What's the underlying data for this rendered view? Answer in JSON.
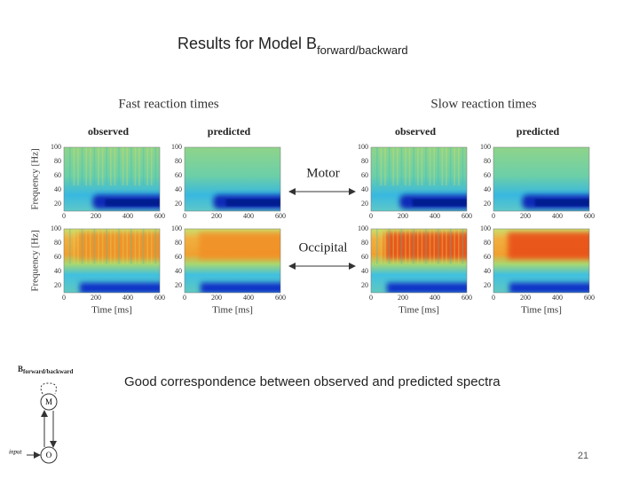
{
  "title": {
    "text": "Results for Model B",
    "subscript": "forward/backward"
  },
  "groups": [
    "Fast reaction times",
    "Slow reaction times"
  ],
  "columns": [
    "observed",
    "predicted"
  ],
  "rows": [
    "Motor",
    "Occipital"
  ],
  "y_axis": {
    "label": "Frequency [Hz]",
    "ticks": [
      100,
      80,
      60,
      40,
      20
    ]
  },
  "x_axis": {
    "label": "Time [ms]",
    "ticks": [
      0,
      200,
      400,
      600
    ]
  },
  "caption": "Good correspondence between observed and predicted spectra",
  "diagram": {
    "title": "B",
    "subscript": "forward/backward",
    "nodes": [
      "M",
      "O"
    ],
    "input": "input"
  },
  "page_number": "21"
}
